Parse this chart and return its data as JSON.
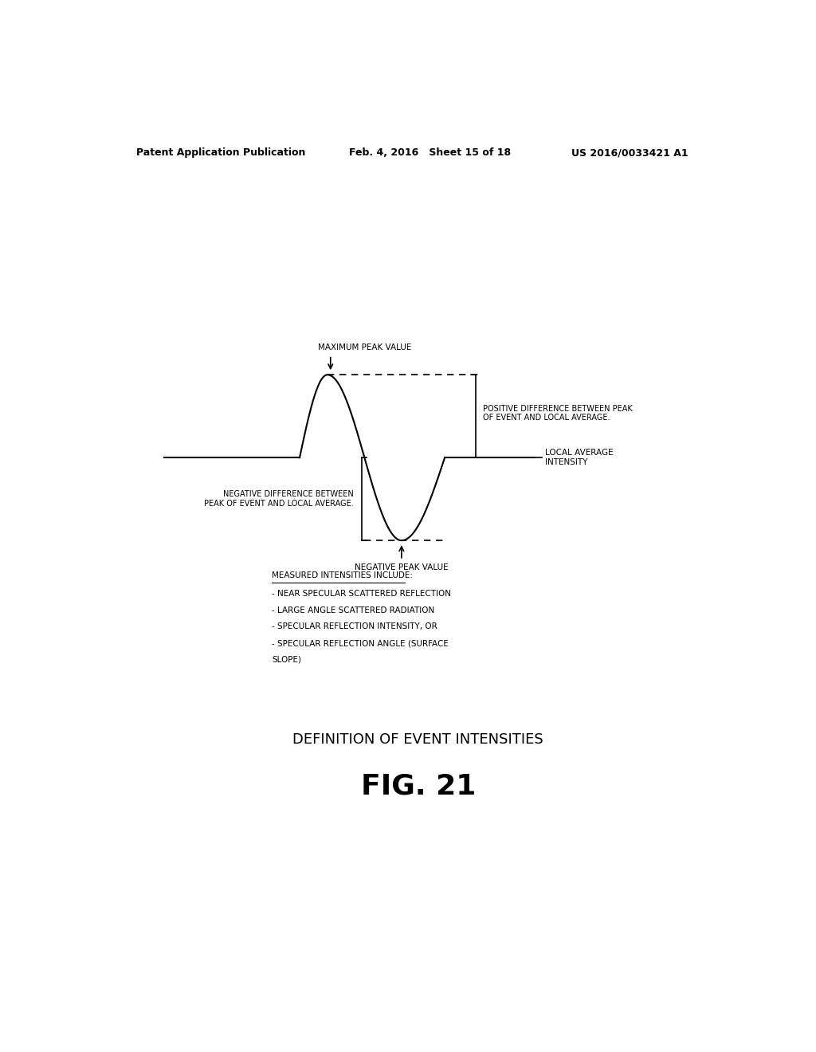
{
  "background_color": "#ffffff",
  "header_left": "Patent Application Publication",
  "header_middle": "Feb. 4, 2016   Sheet 15 of 18",
  "header_right": "US 2016/0033421 A1",
  "fig_title": "DEFINITION OF EVENT INTENSITIES",
  "fig_label": "FIG. 21",
  "label_max_peak": "MAXIMUM PEAK VALUE",
  "label_neg_peak": "NEGATIVE PEAK VALUE",
  "label_pos_diff": "POSITIVE DIFFERENCE BETWEEN PEAK\nOF EVENT AND LOCAL AVERAGE.",
  "label_neg_diff": "NEGATIVE DIFFERENCE BETWEEN\nPEAK OF EVENT AND LOCAL AVERAGE.",
  "label_local_avg": "LOCAL AVERAGE\nINTENSITY",
  "measured_title": "MEASURED INTENSITIES INCLUDE:",
  "measured_lines": [
    "- NEAR SPECULAR SCATTERED REFLECTION",
    "- LARGE ANGLE SCATTERED RADIATION",
    "- SPECULAR REFLECTION INTENSITY, OR",
    "- SPECULAR REFLECTION ANGLE (SURFACE",
    "SLOPE)"
  ]
}
